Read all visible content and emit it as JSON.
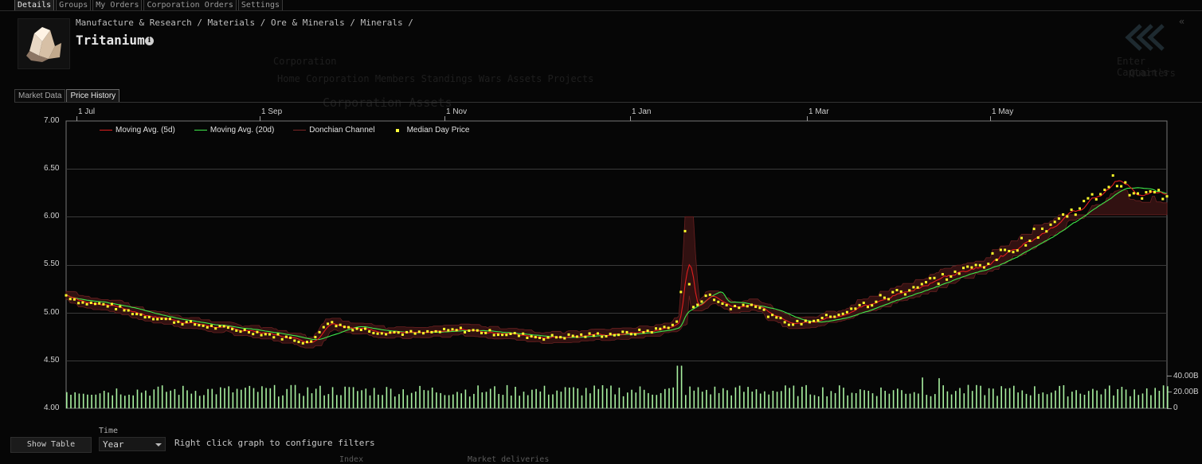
{
  "top_tabs": [
    "Details",
    "Groups",
    "My Orders",
    "Corporation Orders",
    "Settings"
  ],
  "item": {
    "breadcrumb": "Manufacture & Research / Materials / Ore & Minerals / Minerals /",
    "name": "Tritanium",
    "info_icon": "info-icon",
    "icon": "tritanium-crystal-icon"
  },
  "sub_tabs": [
    "Market Data",
    "Price History"
  ],
  "background_text": {
    "corporation": "Corporation",
    "corp_tabs": "Home  Corporation  Members  Standings  Wars  Assets  Projects",
    "corp_assets": "Corporation Assets",
    "captain": "Enter Captain's",
    "quarters": "Quarters",
    "index": "Index",
    "market_deliveries": "Market deliveries"
  },
  "chart": {
    "legend": {
      "ma5": "Moving Avg. (5d)",
      "ma20": "Moving Avg. (20d)",
      "donchian": "Donchian Channel",
      "median": "Median Day Price"
    },
    "colors": {
      "ma5": "#e01e1e",
      "ma20": "#3ee84a",
      "donchian": "#5a1c1c",
      "median": "#ffff2a",
      "volume": "#a8f0a0",
      "grid": "#3a3a3a"
    },
    "month_labels": [
      "1 Jul",
      "1 Sep",
      "1 Nov",
      "1 Jan",
      "1 Mar",
      "1 May"
    ],
    "y_labels": [
      "7.00",
      "6.50",
      "6.00",
      "5.50",
      "5.00",
      "4.50",
      "4.00"
    ],
    "volume_labels": [
      "40.00B",
      "20.00B",
      "0"
    ]
  },
  "chart_data": {
    "type": "line",
    "x_range": [
      "1 Jul",
      "late Jun"
    ],
    "ylim": [
      4.0,
      7.0
    ],
    "volume_ylim": [
      0,
      60
    ],
    "volume_unit": "B",
    "grid": true,
    "legend_position": "top-left",
    "series": [
      {
        "name": "Median Day Price",
        "style": "points"
      },
      {
        "name": "Moving Avg. (5d)",
        "style": "line"
      },
      {
        "name": "Moving Avg. (20d)",
        "style": "line"
      },
      {
        "name": "Donchian Channel",
        "style": "band"
      }
    ],
    "median_keypoints": [
      [
        0,
        5.18
      ],
      [
        8,
        5.1
      ],
      [
        20,
        5.08
      ],
      [
        35,
        4.98
      ],
      [
        50,
        4.92
      ],
      [
        70,
        4.85
      ],
      [
        90,
        4.8
      ],
      [
        110,
        4.72
      ],
      [
        118,
        4.68
      ],
      [
        125,
        4.9
      ],
      [
        135,
        4.85
      ],
      [
        150,
        4.8
      ],
      [
        170,
        4.78
      ],
      [
        190,
        4.82
      ],
      [
        210,
        4.78
      ],
      [
        230,
        4.74
      ],
      [
        250,
        4.76
      ],
      [
        270,
        4.78
      ],
      [
        285,
        4.82
      ],
      [
        295,
        4.9
      ],
      [
        298,
        5.85
      ],
      [
        301,
        5.05
      ],
      [
        310,
        5.18
      ],
      [
        320,
        5.05
      ],
      [
        330,
        5.1
      ],
      [
        340,
        4.95
      ],
      [
        350,
        4.88
      ],
      [
        360,
        4.92
      ],
      [
        375,
        5.0
      ],
      [
        390,
        5.12
      ],
      [
        405,
        5.25
      ],
      [
        420,
        5.35
      ],
      [
        435,
        5.45
      ],
      [
        450,
        5.6
      ],
      [
        465,
        5.8
      ],
      [
        480,
        6.0
      ],
      [
        495,
        6.2
      ],
      [
        505,
        6.4
      ],
      [
        515,
        6.2
      ],
      [
        525,
        6.25
      ],
      [
        530,
        6.22
      ]
    ],
    "volume_base": 24,
    "volume_spikes": [
      [
        295,
        58
      ],
      [
        412,
        42
      ],
      [
        420,
        41
      ]
    ]
  }
}
